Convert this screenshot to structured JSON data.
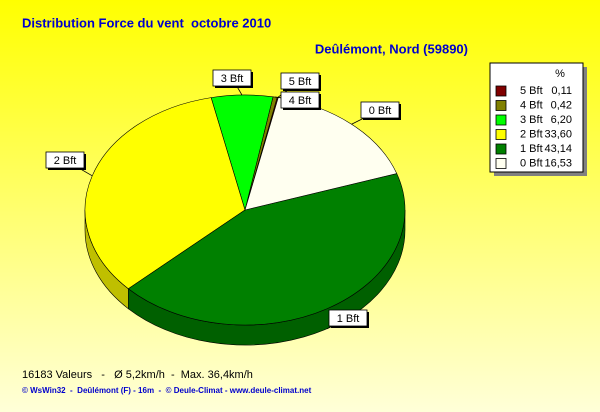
{
  "chart_data": {
    "type": "pie",
    "title": "Distribution Force du vent  octobre 2010",
    "subtitle": "Deûlémont, Nord (59890)",
    "categories": [
      "5 Bft",
      "4 Bft",
      "3 Bft",
      "2 Bft",
      "1 Bft",
      "0 Bft"
    ],
    "values": [
      0.11,
      0.42,
      6.2,
      33.6,
      43.14,
      16.53
    ],
    "value_labels": [
      "0,11",
      "0,42",
      "6,20",
      "33,60",
      "43,14",
      "16,53"
    ],
    "colors": [
      "#800000",
      "#808000",
      "#00ff00",
      "#ffff00",
      "#008000",
      "#fffff0"
    ],
    "legend_title": "%",
    "legend": "right"
  },
  "footer": {
    "stats": "16183 Valeurs   -   Ø 5,2km/h  -  Max. 36,4km/h",
    "credits": "© WsWin32  -  Deûlémont (F) - 16m  -  © Deule-Climat - www.deule-climat.net"
  }
}
